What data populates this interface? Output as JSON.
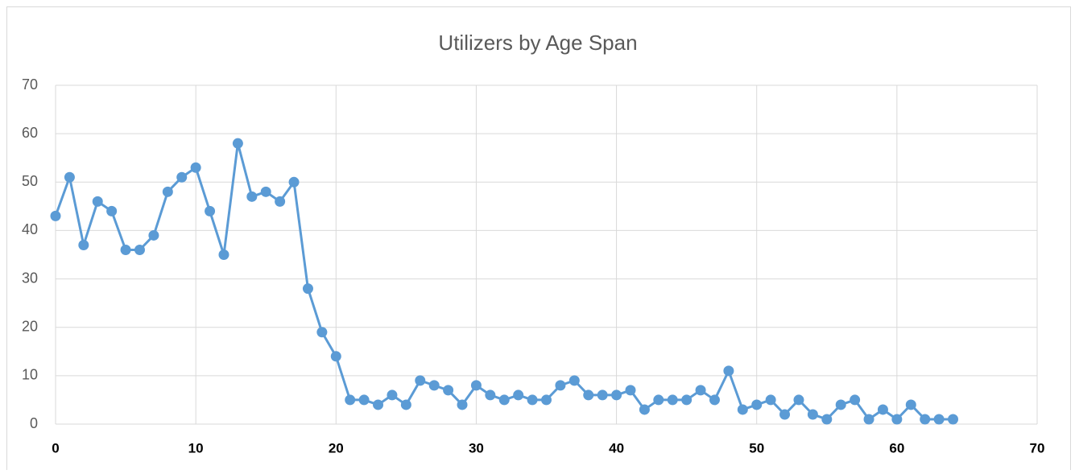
{
  "chart_data": {
    "type": "line",
    "title": "Utilizers by Age Span",
    "x": [
      0,
      1,
      2,
      3,
      4,
      5,
      6,
      7,
      8,
      9,
      10,
      11,
      12,
      13,
      14,
      15,
      16,
      17,
      18,
      19,
      20,
      21,
      22,
      23,
      24,
      25,
      26,
      27,
      28,
      29,
      30,
      31,
      32,
      33,
      34,
      35,
      36,
      37,
      38,
      39,
      40,
      41,
      42,
      43,
      44,
      45,
      46,
      47,
      48,
      49,
      50,
      51,
      52,
      53,
      54,
      55,
      56,
      57,
      58,
      59,
      60,
      61,
      62,
      63,
      64
    ],
    "series": [
      {
        "name": "Utilizers",
        "color": "#5b9bd5",
        "values": [
          43,
          51,
          37,
          46,
          44,
          36,
          36,
          39,
          48,
          51,
          53,
          44,
          35,
          58,
          47,
          48,
          46,
          50,
          28,
          19,
          14,
          5,
          5,
          4,
          6,
          4,
          9,
          8,
          7,
          4,
          8,
          6,
          5,
          6,
          5,
          5,
          8,
          9,
          6,
          6,
          6,
          7,
          3,
          5,
          5,
          5,
          7,
          5,
          11,
          3,
          4,
          5,
          2,
          5,
          2,
          1,
          4,
          5,
          1,
          3,
          1,
          4,
          1,
          1,
          1
        ]
      }
    ],
    "xlim": [
      0,
      70
    ],
    "xticks": [
      0,
      10,
      20,
      30,
      40,
      50,
      60,
      70
    ],
    "ylim": [
      0,
      70
    ],
    "yticks": [
      0,
      10,
      20,
      30,
      40,
      50,
      60,
      70
    ],
    "grid": true
  }
}
